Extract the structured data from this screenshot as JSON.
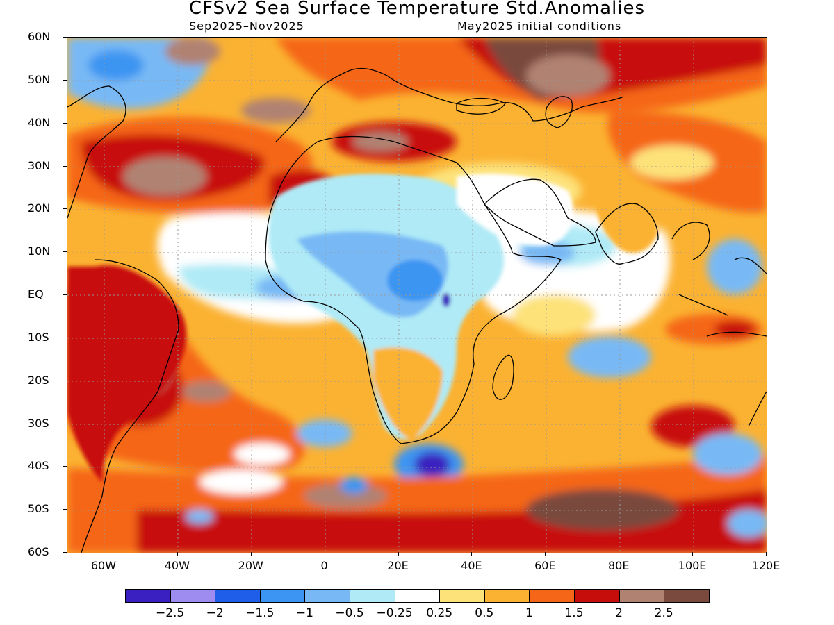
{
  "title": "CFSv2 Sea Surface Temperature Std.Anomalies",
  "subtitle_left": "Sep2025–Nov2025",
  "subtitle_right": "May2025 initial conditions",
  "lat_labels": [
    "60N",
    "50N",
    "40N",
    "30N",
    "20N",
    "10N",
    "EQ",
    "10S",
    "20S",
    "30S",
    "40S",
    "50S",
    "60S"
  ],
  "lon_labels": [
    "60W",
    "40W",
    "20W",
    "0",
    "20E",
    "40E",
    "60E",
    "80E",
    "100E",
    "120E"
  ],
  "legend": {
    "colors": [
      "#3a20c0",
      "#9e8cf0",
      "#1e5ee8",
      "#3c95f2",
      "#78b9f5",
      "#afeaf6",
      "#ffffff",
      "#fde27a",
      "#fbb232",
      "#f56618",
      "#c70c0c",
      "#b08272",
      "#7a4a3e"
    ],
    "labels": [
      "−2.5",
      "−2",
      "−1.5",
      "−1",
      "−0.5",
      "−0.25",
      "0.25",
      "0.5",
      "1",
      "1.5",
      "2",
      "2.5"
    ]
  }
}
